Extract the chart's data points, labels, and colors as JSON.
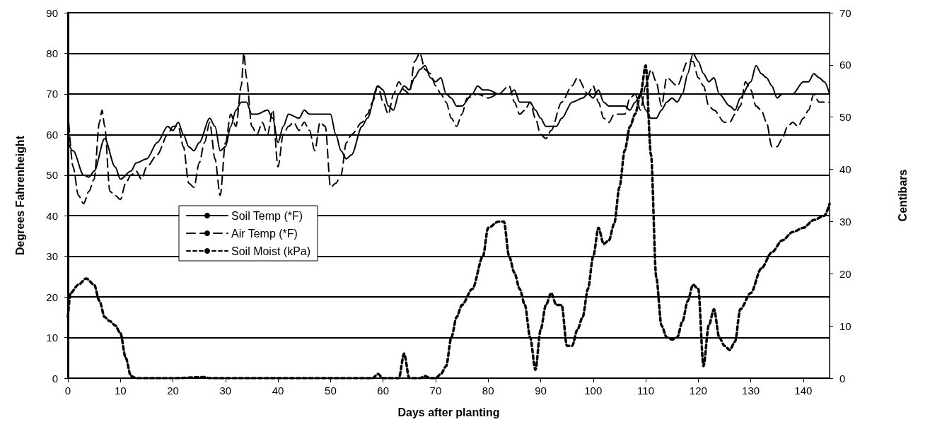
{
  "chart_data": {
    "type": "line",
    "xlabel": "Days after planting",
    "ylabel": "Degrees Fahrenheight",
    "y2label": "Centibars",
    "xlim": [
      0,
      145
    ],
    "xticks": [
      0,
      10,
      20,
      30,
      40,
      50,
      60,
      70,
      80,
      90,
      100,
      110,
      120,
      130,
      140
    ],
    "ylim": [
      0,
      90
    ],
    "yticks": [
      0,
      10,
      20,
      30,
      40,
      50,
      60,
      70,
      80,
      90
    ],
    "y2lim": [
      0,
      70
    ],
    "y2ticks": [
      0,
      10,
      20,
      30,
      40,
      50,
      60,
      70
    ],
    "grid": "y",
    "legend": "left",
    "marker": "none",
    "series": [
      {
        "name": "Soil Temp (*F)",
        "color": "#000000",
        "line_style": "solid",
        "x": [
          0,
          1,
          3,
          4,
          5,
          7,
          9,
          10,
          12,
          13,
          15,
          17,
          19,
          20,
          21,
          22,
          23,
          24,
          25,
          27,
          28,
          29,
          30,
          31,
          32,
          33,
          34,
          35,
          36,
          38,
          39,
          40,
          41,
          42,
          44,
          45,
          46,
          50,
          51,
          52,
          53,
          54,
          56,
          57,
          59,
          60,
          61,
          62,
          63,
          64,
          65,
          66,
          67,
          68,
          69,
          70,
          71,
          72,
          73,
          74,
          75,
          77,
          78,
          79,
          80,
          82,
          84,
          85,
          86,
          88,
          89,
          90,
          91,
          93,
          94,
          96,
          98,
          99,
          100,
          101,
          102,
          103,
          106,
          107,
          108,
          109,
          110,
          111,
          112,
          113,
          114,
          115,
          116,
          117,
          118,
          119,
          120,
          121,
          122,
          123,
          124,
          126,
          127,
          128,
          130,
          131,
          132,
          133,
          134,
          135,
          136,
          138,
          140,
          141,
          142,
          143,
          144,
          145
        ],
        "values": [
          58,
          56,
          50,
          49.5,
          51,
          59,
          52,
          49,
          51,
          53,
          54,
          58,
          62,
          61,
          63,
          60,
          57,
          56,
          58,
          64,
          62,
          56,
          57,
          62,
          66,
          68,
          68,
          65,
          65,
          66,
          64,
          58,
          62,
          65,
          64,
          66,
          65,
          65,
          60,
          56,
          54,
          55,
          62,
          64,
          72,
          71,
          67,
          66,
          70,
          72,
          71,
          74,
          76,
          77,
          74,
          73,
          74,
          70,
          69,
          67,
          67,
          70,
          72,
          71,
          71,
          70,
          70,
          71,
          68,
          68,
          66,
          64,
          62,
          62,
          64,
          68,
          69,
          70,
          69,
          71,
          68,
          67,
          67,
          66,
          68,
          70,
          66,
          64,
          64,
          66,
          68,
          69,
          68,
          70,
          75,
          80,
          78,
          75,
          73,
          74,
          70,
          67,
          66,
          69,
          73,
          77,
          75,
          74,
          72,
          69,
          70,
          70,
          73,
          73,
          75,
          74,
          73,
          70
        ]
      },
      {
        "name": "Air Temp (*F)",
        "color": "#000000",
        "line_style": "dashed",
        "x": [
          0,
          1,
          2,
          3,
          4,
          5,
          6,
          6.5,
          7,
          8,
          9,
          10,
          11,
          12,
          13,
          14,
          15,
          17,
          19,
          20,
          21,
          22,
          23,
          24,
          25,
          26,
          27,
          28,
          29,
          30,
          31,
          32,
          33,
          33.5,
          34,
          35,
          36,
          37,
          38,
          39,
          40,
          41,
          42,
          43,
          44,
          45,
          46,
          47,
          48,
          49,
          50,
          51,
          52,
          53,
          54,
          56,
          57,
          58,
          59,
          60,
          61,
          62,
          63,
          64,
          65,
          66,
          67,
          68,
          69,
          70,
          71,
          72,
          73,
          74,
          75,
          76,
          78,
          80,
          82,
          84,
          85,
          86,
          87,
          88,
          89,
          90,
          91,
          92,
          94,
          96,
          97,
          99,
          100,
          101,
          102,
          103,
          104,
          106,
          107,
          108,
          109,
          110,
          111,
          112,
          113,
          114,
          116,
          118,
          119,
          120,
          121,
          122,
          123,
          125,
          126,
          127,
          128,
          129,
          130,
          131,
          132,
          133,
          134,
          135,
          136,
          137,
          138,
          139,
          140,
          141,
          142,
          143,
          144,
          145
        ],
        "values": [
          66,
          52,
          45,
          43,
          46,
          49,
          63,
          66,
          62,
          46,
          45,
          44,
          48,
          50,
          51,
          49,
          52,
          55,
          60,
          62,
          62,
          57,
          48,
          47,
          53,
          58,
          63,
          54,
          45,
          58,
          65,
          62,
          72,
          80,
          74,
          62,
          60,
          63,
          60,
          66,
          52,
          60,
          62,
          63,
          61,
          63,
          61,
          56,
          63,
          62,
          47,
          48,
          50,
          58,
          60,
          63,
          65,
          68,
          72,
          68,
          65,
          70,
          73,
          71,
          70,
          78,
          80,
          76,
          75,
          72,
          70,
          68,
          64,
          62,
          65,
          69,
          70,
          69,
          70,
          72,
          68,
          65,
          66,
          68,
          64,
          60,
          59,
          61,
          68,
          72,
          74,
          70,
          72,
          68,
          64,
          63,
          65,
          65,
          69,
          70,
          66,
          72,
          76,
          73,
          67,
          74,
          72,
          78,
          78,
          74,
          72,
          67,
          66,
          63,
          63,
          65,
          67,
          73,
          71,
          67,
          66,
          63,
          57,
          57,
          59,
          62,
          63,
          62,
          64,
          66,
          70,
          68,
          68,
          68
        ]
      },
      {
        "name": "Soil Moist (kPa)",
        "color": "#000000",
        "line_style": "dotted",
        "axis": "y2",
        "x": [
          0,
          0.5,
          2,
          3.5,
          5,
          6,
          7,
          8,
          9,
          10,
          11,
          12,
          13,
          20,
          26,
          27,
          40,
          58,
          59,
          60,
          63,
          64,
          65,
          67,
          68,
          69,
          70,
          71,
          72,
          73,
          74,
          75,
          77,
          79,
          80,
          82,
          83,
          84,
          85,
          86,
          87,
          88,
          89,
          90,
          91,
          92,
          93,
          94,
          95,
          96,
          97,
          98,
          99,
          100,
          101,
          102,
          103,
          104,
          105,
          106,
          107,
          108,
          109,
          110,
          111,
          112,
          113,
          114,
          115,
          116,
          117,
          118,
          119,
          120,
          121,
          122,
          123,
          124,
          125,
          126,
          127,
          128,
          130,
          132,
          134,
          136,
          138,
          140,
          142,
          144,
          145
        ],
        "values": [
          11.7,
          16.3,
          17.9,
          19.1,
          17.9,
          14.8,
          11.7,
          10.9,
          10.1,
          8.6,
          3.9,
          0.4,
          0,
          0,
          0.2,
          0,
          0,
          0,
          0.8,
          0,
          0,
          4.7,
          0,
          0,
          0.4,
          0,
          0,
          0.8,
          2.3,
          7.8,
          11.7,
          14,
          17.1,
          23.3,
          28.8,
          30,
          30,
          23.3,
          20.2,
          17.1,
          14,
          7.8,
          1.6,
          9.3,
          14,
          16.3,
          14,
          14,
          6.2,
          6.2,
          9.3,
          11.7,
          17.1,
          23.3,
          28.8,
          25.7,
          26.4,
          29.6,
          36.6,
          43.6,
          48.2,
          50.6,
          54.4,
          59.9,
          42.8,
          19.4,
          10.1,
          7.8,
          7.4,
          7.8,
          10.9,
          14.8,
          17.9,
          17.1,
          2.3,
          10.1,
          13.2,
          7.8,
          6.2,
          5.4,
          7,
          13.2,
          16.3,
          21,
          24.1,
          26.4,
          28,
          28.8,
          30.3,
          31.1,
          33.4
        ]
      }
    ]
  }
}
